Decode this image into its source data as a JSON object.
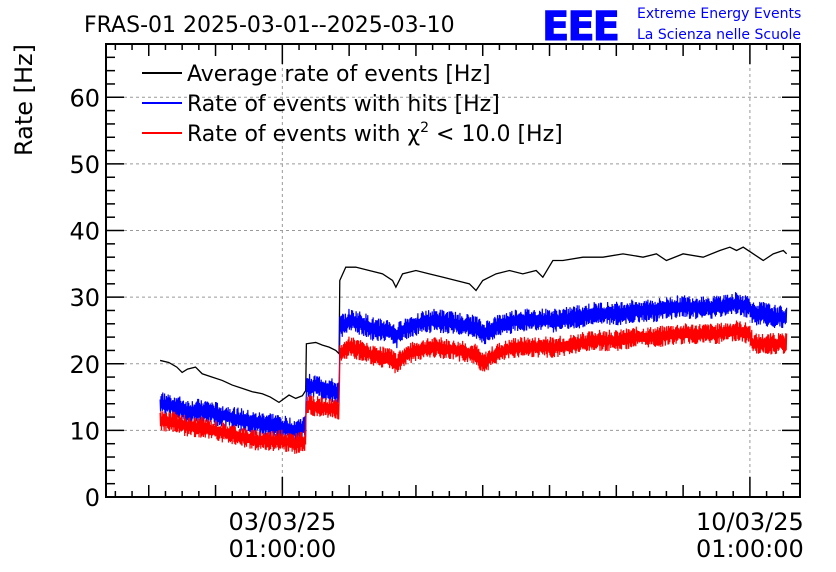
{
  "chart_data": {
    "type": "line",
    "title": "FRAS-01 2025-03-01--2025-03-10",
    "ylabel": "Rate [Hz]",
    "xlabel": "",
    "ylim": [
      0,
      68
    ],
    "xlim_days": [
      -2.64,
      7.75
    ],
    "x_unit": "days since 03/03/25 01:00:00",
    "grid": true,
    "legend_position": "top-left",
    "yticks": [
      0,
      10,
      20,
      30,
      40,
      50,
      60
    ],
    "xticks": [
      {
        "day": 0,
        "date": "03/03/25",
        "time": "01:00:00"
      },
      {
        "day": 7,
        "date": "10/03/25",
        "time": "01:00:00"
      }
    ],
    "series": [
      {
        "name": "Average rate of events [Hz]",
        "color": "#000000",
        "band": false,
        "x": [
          -1.83,
          -1.7,
          -1.58,
          -1.5,
          -1.42,
          -1.3,
          -1.2,
          -1.05,
          -0.9,
          -0.75,
          -0.6,
          -0.45,
          -0.3,
          -0.18,
          -0.05,
          0.1,
          0.2,
          0.3,
          0.35,
          0.36,
          0.5,
          0.6,
          0.7,
          0.8,
          0.85,
          0.86,
          0.95,
          1.1,
          1.3,
          1.5,
          1.65,
          1.7,
          1.8,
          2,
          2.2,
          2.4,
          2.6,
          2.8,
          2.9,
          3,
          3.2,
          3.4,
          3.6,
          3.8,
          3.9,
          4.05,
          4.2,
          4.5,
          4.8,
          5.1,
          5.4,
          5.6,
          5.75,
          6.0,
          6.3,
          6.55,
          6.7,
          6.8,
          6.9,
          7.05,
          7.2,
          7.35,
          7.5,
          7.55
        ],
        "y": [
          20.5,
          20.2,
          19.5,
          18.7,
          19.2,
          19.5,
          18.5,
          18,
          17.5,
          16.8,
          16.3,
          15.8,
          15.5,
          15,
          14.2,
          15.3,
          14.8,
          15.2,
          16,
          23,
          23.2,
          22.8,
          22.5,
          22,
          21.5,
          32.5,
          34.5,
          34.5,
          34,
          33.5,
          32.5,
          31.5,
          33.5,
          34,
          33.5,
          33,
          32.5,
          32,
          31,
          32.5,
          33.5,
          34,
          33.5,
          34,
          33,
          35.5,
          35.5,
          36,
          36,
          36.5,
          36,
          36.5,
          35.5,
          36.5,
          36,
          37,
          37.5,
          37,
          37.5,
          36.5,
          35.5,
          36.5,
          37,
          36.5
        ]
      },
      {
        "name": "Rate of events with hits [Hz]",
        "color": "#0000ff",
        "band": true,
        "x": [
          -1.83,
          -1.6,
          -1.4,
          -1.2,
          -1.0,
          -0.8,
          -0.6,
          -0.4,
          -0.2,
          0,
          0.2,
          0.35,
          0.36,
          0.55,
          0.75,
          0.85,
          0.86,
          1.0,
          1.2,
          1.4,
          1.6,
          1.7,
          1.8,
          2.0,
          2.3,
          2.6,
          2.9,
          3.0,
          3.2,
          3.5,
          3.8,
          4.1,
          4.4,
          4.7,
          5.0,
          5.3,
          5.6,
          5.9,
          6.2,
          6.5,
          6.8,
          7.0,
          7.05,
          7.2,
          7.4,
          7.55
        ],
        "y": [
          14,
          13.6,
          12.8,
          13,
          12.5,
          12,
          11.5,
          11,
          11,
          10.5,
          10,
          10.5,
          16.8,
          16.5,
          16,
          15.5,
          25.5,
          26.5,
          26,
          25,
          25,
          24,
          25,
          26,
          26.5,
          26,
          25.5,
          24.5,
          25.5,
          26.5,
          26.5,
          26.5,
          27,
          27.5,
          27.5,
          28,
          28,
          28.5,
          28.5,
          28.5,
          29,
          28.5,
          27.5,
          27.5,
          27,
          27
        ],
        "spread": 1.8
      },
      {
        "name": "Rate of events with χ2 < 10.0 [Hz]",
        "color": "#ff0000",
        "band": true,
        "x": [
          -1.83,
          -1.6,
          -1.4,
          -1.2,
          -1.0,
          -0.8,
          -0.6,
          -0.4,
          -0.2,
          0,
          0.2,
          0.35,
          0.36,
          0.55,
          0.75,
          0.85,
          0.86,
          1.0,
          1.2,
          1.4,
          1.6,
          1.7,
          1.8,
          2.0,
          2.3,
          2.6,
          2.9,
          3.0,
          3.2,
          3.5,
          3.8,
          4.1,
          4.4,
          4.7,
          5.0,
          5.3,
          5.6,
          5.9,
          6.2,
          6.5,
          6.8,
          7.0,
          7.05,
          7.2,
          7.4,
          7.55
        ],
        "y": [
          11.5,
          11.2,
          10.5,
          10.5,
          10,
          9.5,
          9,
          8.5,
          8.5,
          8.5,
          8,
          8.5,
          13.8,
          13.5,
          13.2,
          13,
          21.5,
          22.5,
          22,
          21,
          21,
          20,
          21,
          22,
          22.5,
          22,
          21.5,
          20,
          21.5,
          22.5,
          22.5,
          22.5,
          23,
          23.5,
          23.5,
          24,
          24,
          24.5,
          24.5,
          24.5,
          25,
          24.5,
          23,
          23,
          23,
          23
        ],
        "spread": 1.6
      }
    ],
    "legend": [
      {
        "text": "Average rate of events [Hz]",
        "color": "#000000"
      },
      {
        "text": "Rate of events with hits [Hz]",
        "color": "#0000ff"
      },
      {
        "text_pre": "Rate of events with χ",
        "sup": "2",
        "text_post": " < 10.0 [Hz]",
        "color": "#ff0000"
      }
    ]
  },
  "logo": {
    "letters": "EEE",
    "line1": "Extreme Energy Events",
    "line2": "La Scienza nelle Scuole",
    "color": "#0000ff"
  }
}
